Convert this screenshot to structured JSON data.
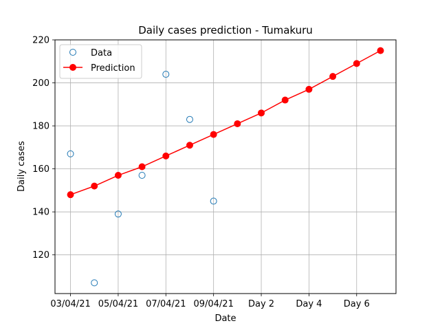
{
  "chart_data": {
    "type": "line",
    "title": "Daily cases prediction - Tumakuru",
    "xlabel": "Date",
    "ylabel": "Daily cases",
    "xlim": [
      -0.65,
      13.65
    ],
    "ylim": [
      102,
      220
    ],
    "x_ticks": [
      {
        "pos": 0,
        "label": "03/04/21"
      },
      {
        "pos": 2,
        "label": "05/04/21"
      },
      {
        "pos": 4,
        "label": "07/04/21"
      },
      {
        "pos": 6,
        "label": "09/04/21"
      },
      {
        "pos": 8,
        "label": "Day 2"
      },
      {
        "pos": 10,
        "label": "Day 4"
      },
      {
        "pos": 12,
        "label": "Day 6"
      }
    ],
    "y_ticks": [
      120,
      140,
      160,
      180,
      200,
      220
    ],
    "grid": true,
    "legend_position": "upper-left",
    "series": [
      {
        "name": "Data",
        "style": "scatter-open-circle",
        "color": "#1f77b4",
        "x": [
          0,
          1,
          2,
          3,
          4,
          5,
          6
        ],
        "y": [
          167,
          107,
          139,
          157,
          204,
          183,
          145
        ]
      },
      {
        "name": "Prediction",
        "style": "line-filled-circle",
        "color": "#ff0000",
        "x": [
          0,
          1,
          2,
          3,
          4,
          5,
          6,
          7,
          8,
          9,
          10,
          11,
          12,
          13
        ],
        "y": [
          148,
          152,
          157,
          161,
          166,
          171,
          176,
          181,
          186,
          192,
          197,
          203,
          209,
          215
        ]
      }
    ]
  }
}
